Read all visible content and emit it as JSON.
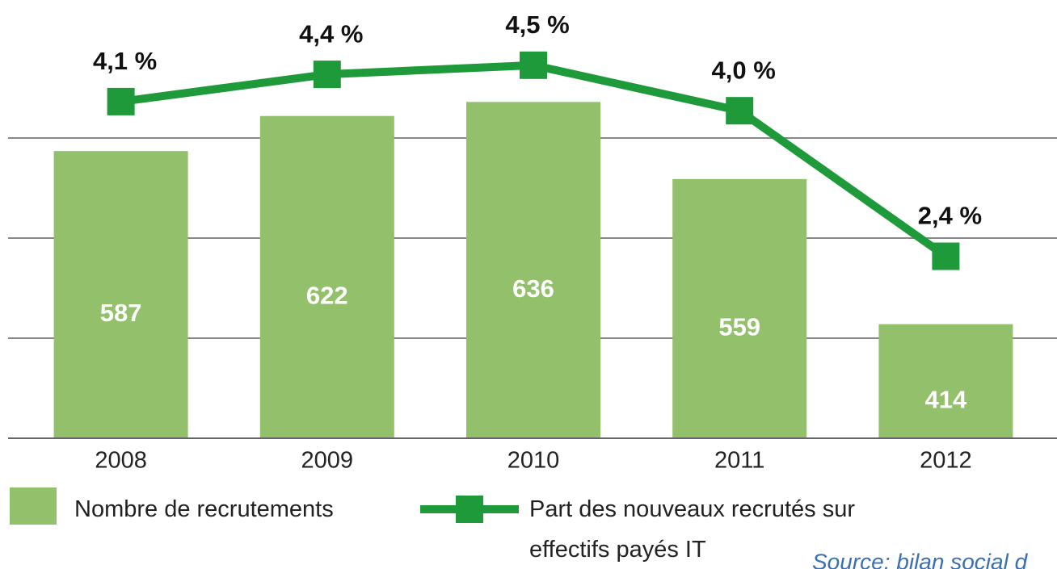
{
  "chart_data": {
    "type": "bar",
    "categories": [
      "2008",
      "2009",
      "2010",
      "2011",
      "2012"
    ],
    "series": [
      {
        "name": "Nombre de recrutements",
        "type": "bar",
        "color": "#93c06b",
        "values": [
          587,
          622,
          636,
          559,
          414
        ]
      },
      {
        "name": "Part des nouveaux recrutés sur effectifs payés IT",
        "type": "line",
        "axis": "y2",
        "color": "#1f9a3a",
        "values": [
          4.1,
          4.4,
          4.5,
          4.0,
          2.4
        ],
        "value_labels": [
          "4,1 %",
          "4,4 %",
          "4,5 %",
          "4,0 %",
          "2,4 %"
        ]
      }
    ],
    "ylim": [
      300,
      700
    ],
    "yticks": [
      400,
      500,
      600
    ],
    "y2lim": [
      0.4,
      4.8
    ],
    "grid": true,
    "source": "Source: bilan social d"
  }
}
